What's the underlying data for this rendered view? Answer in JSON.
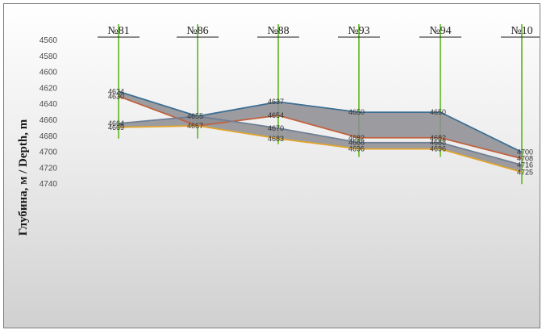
{
  "chart_data": {
    "type": "line",
    "title": "",
    "ylabel": "Глубина, м / Depth, m",
    "xlabel": "",
    "ylim": [
      4740,
      4560
    ],
    "y_ticks": [
      "4560",
      "4580",
      "4600",
      "4620",
      "4640",
      "4660",
      "4680",
      "4700",
      "4720",
      "4740"
    ],
    "categories": [
      "№81",
      "№86",
      "№88",
      "№93",
      "№94",
      "№10"
    ],
    "series": [
      {
        "values": [
          4624,
          4655,
          4637,
          4650,
          4650,
          4700
        ],
        "labels": [
          "4624",
          "4655",
          "4637",
          "4650",
          "4650",
          "4700"
        ],
        "color": "#3d6f93"
      },
      {
        "values": [
          4630,
          4667,
          4654,
          4682,
          4682,
          4708
        ],
        "labels": [
          "4630",
          "4667",
          "4654",
          "4682",
          "4682",
          "4708"
        ],
        "color": "#c0623f"
      },
      {
        "values": [
          4664,
          4655,
          4670,
          4688,
          4688,
          4716
        ],
        "labels": [
          "4664",
          "",
          "4670",
          "4688",
          "4688",
          "4716"
        ],
        "color": "#6e7f95"
      },
      {
        "values": [
          4669,
          4667,
          4683,
          4696,
          4696,
          4725
        ],
        "labels": [
          "4669",
          "",
          "4683",
          "4696",
          "4696",
          "4725"
        ],
        "color": "#e2a52c"
      }
    ],
    "shaded_zones": [
      [
        0,
        1
      ],
      [
        2,
        3
      ]
    ],
    "shade_color": "#8d8d92",
    "well_line_color": "#7cc34a",
    "well_line_span": [
      4560,
      4683,
      4683,
      4690,
      4706,
      4706,
      4740
    ],
    "well_lines": [
      {
        "top": 4560,
        "bottom": 4683
      },
      {
        "top": 4560,
        "bottom": 4683
      },
      {
        "top": 4560,
        "bottom": 4690
      },
      {
        "top": 4560,
        "bottom": 4706
      },
      {
        "top": 4560,
        "bottom": 4706
      },
      {
        "top": 4560,
        "bottom": 4740
      }
    ],
    "grid": false,
    "background": "gradient-white-to-gray"
  }
}
